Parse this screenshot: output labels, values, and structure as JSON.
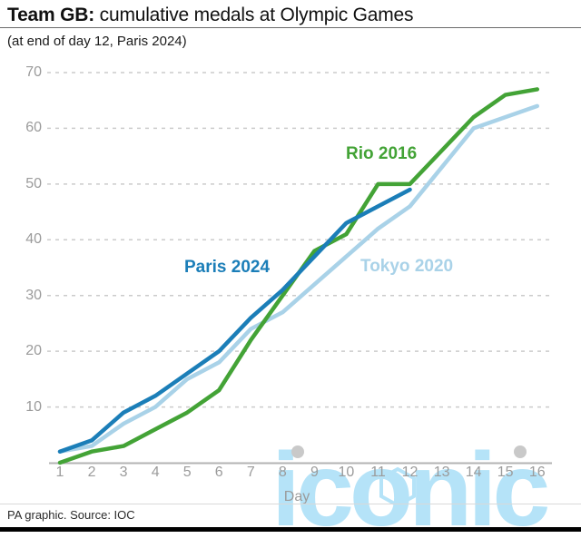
{
  "header": {
    "title_bold": "Team GB:",
    "title_rest": " cumulative medals at Olympic Games",
    "subtitle": "(at end of day 12, Paris 2024)"
  },
  "axis": {
    "xlabel": "Day"
  },
  "watermark": {
    "text": "iconic"
  },
  "footer": {
    "credit": "PA graphic. Source: IOC"
  },
  "chart_data": {
    "type": "line",
    "title": "Team GB: cumulative medals at Olympic Games",
    "subtitle": "(at end of day 12, Paris 2024)",
    "xlabel": "Day",
    "ylabel": "",
    "ylim": [
      0,
      70
    ],
    "y_ticks": [
      10,
      20,
      30,
      40,
      50,
      60,
      70
    ],
    "x_ticks": [
      1,
      2,
      3,
      4,
      5,
      6,
      7,
      8,
      9,
      10,
      11,
      12,
      13,
      14,
      15,
      16
    ],
    "grid": "horizontal dashed",
    "legend_position": "inline line labels",
    "series": [
      {
        "name": "Tokyo 2020",
        "color": "#a9d2e8",
        "x": [
          1,
          2,
          3,
          4,
          5,
          6,
          7,
          8,
          9,
          10,
          11,
          12,
          13,
          14,
          15,
          16
        ],
        "values": [
          2,
          3,
          7,
          10,
          15,
          18,
          24,
          27,
          32,
          37,
          42,
          46,
          53,
          60,
          62,
          64
        ]
      },
      {
        "name": "Rio 2016",
        "color": "#43a336",
        "x": [
          1,
          2,
          3,
          4,
          5,
          6,
          7,
          8,
          9,
          10,
          11,
          12,
          13,
          14,
          15,
          16
        ],
        "values": [
          0,
          2,
          3,
          6,
          9,
          13,
          22,
          30,
          38,
          41,
          50,
          50,
          56,
          62,
          66,
          67
        ]
      },
      {
        "name": "Paris 2024",
        "color": "#1b7eb8",
        "x": [
          1,
          2,
          3,
          4,
          5,
          6,
          7,
          8,
          9,
          10,
          11,
          12
        ],
        "values": [
          2,
          4,
          9,
          12,
          16,
          20,
          26,
          31,
          37,
          43,
          46,
          49
        ]
      }
    ]
  }
}
